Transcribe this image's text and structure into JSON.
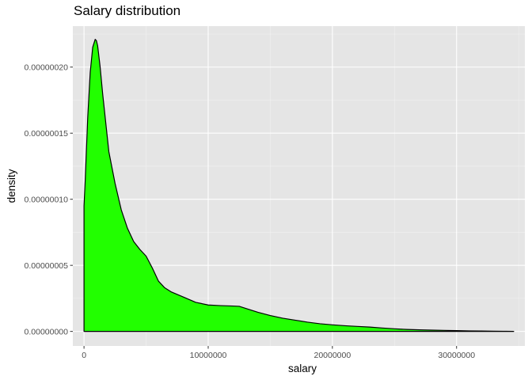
{
  "chart_data": {
    "type": "area",
    "title": "Salary distribution",
    "xlabel": "salary",
    "ylabel": "density",
    "xlim": [
      -900000,
      35500000
    ],
    "ylim": [
      -1.1e-08,
      2.31e-07
    ],
    "x_ticks": [
      0,
      10000000,
      20000000,
      30000000
    ],
    "x_tick_labels": [
      "0",
      "10000000",
      "20000000",
      "30000000"
    ],
    "y_ticks": [
      0,
      5e-08,
      1e-07,
      1.5e-07,
      2e-07
    ],
    "y_tick_labels": [
      "0.00000000",
      "0.00000005",
      "0.00000010",
      "0.00000015",
      "0.00000020"
    ],
    "grid": true,
    "legend": "none",
    "series": [
      {
        "fill": "#22ff00",
        "stroke": "#000000",
        "x": [
          0,
          0,
          100000,
          300000,
          500000,
          700000,
          900000,
          1000000,
          1100000,
          1300000,
          1500000,
          2000000,
          2500000,
          3000000,
          3500000,
          4000000,
          4500000,
          5000000,
          5500000,
          6000000,
          6500000,
          7000000,
          8000000,
          9000000,
          10000000,
          11000000,
          12000000,
          12500000,
          13000000,
          14000000,
          15000000,
          16000000,
          17000000,
          18000000,
          19000000,
          20000000,
          21000000,
          22000000,
          23000000,
          24000000,
          25000000,
          26000000,
          27000000,
          28000000,
          29000000,
          30000000,
          31000000,
          32000000,
          33000000,
          34000000,
          34600000
        ],
        "y": [
          0,
          9.5e-08,
          1.15e-07,
          1.62e-07,
          1.96e-07,
          2.15e-07,
          2.21e-07,
          2.2e-07,
          2.16e-07,
          2e-07,
          1.8e-07,
          1.36e-07,
          1.12e-07,
          9.2e-08,
          7.8e-08,
          6.8e-08,
          6.2e-08,
          5.7e-08,
          4.8e-08,
          3.8e-08,
          3.3e-08,
          3e-08,
          2.6e-08,
          2.2e-08,
          2e-08,
          1.95e-08,
          1.92e-08,
          1.9e-08,
          1.75e-08,
          1.45e-08,
          1.2e-08,
          1e-08,
          8.5e-09,
          7e-09,
          5.8e-09,
          5e-09,
          4.3e-09,
          3.8e-09,
          3.3e-09,
          2.6e-09,
          2e-09,
          1.5e-09,
          1.2e-09,
          1e-09,
          8e-10,
          6e-10,
          4e-10,
          3e-10,
          2e-10,
          1e-10,
          0
        ]
      }
    ]
  }
}
